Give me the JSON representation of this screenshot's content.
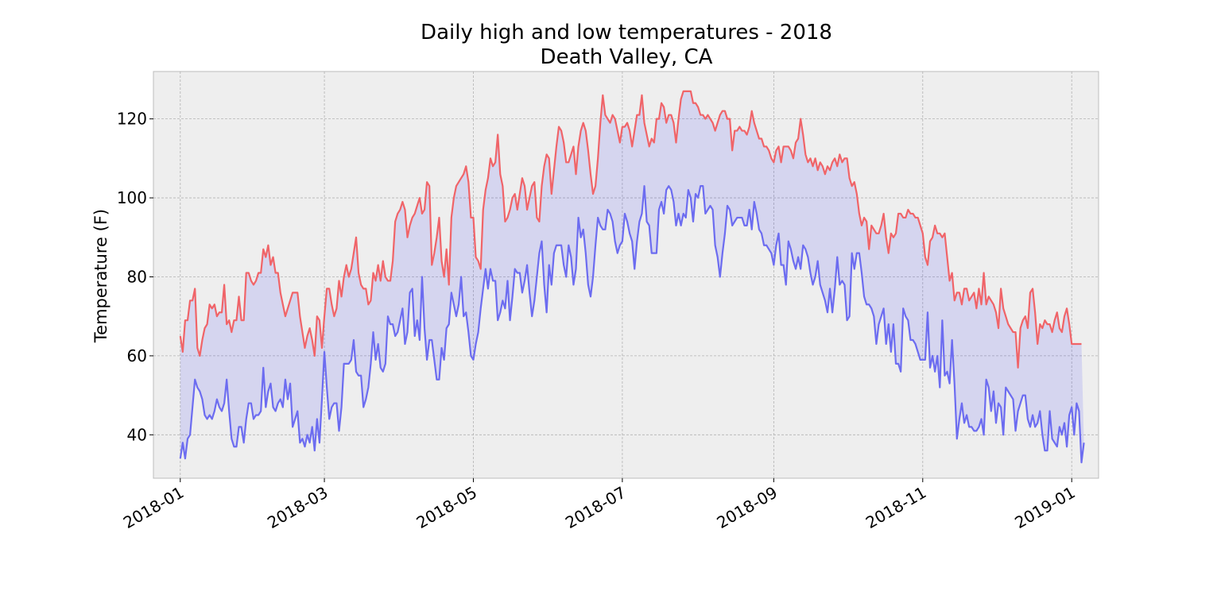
{
  "chart_data": {
    "type": "line",
    "title": [
      "Daily high and low temperatures - 2018",
      "Death Valley, CA"
    ],
    "xlabel": "",
    "ylabel": "Temperature (F)",
    "x_axis": {
      "kind": "date",
      "range": [
        "2017-12-21",
        "2019-01-12"
      ],
      "ticks": [
        "2018-01",
        "2018-03",
        "2018-05",
        "2018-07",
        "2018-09",
        "2018-11",
        "2019-01"
      ],
      "tick_dates": [
        "2018-01-01",
        "2018-03-01",
        "2018-05-01",
        "2018-07-01",
        "2018-09-01",
        "2018-11-01",
        "2019-01-01"
      ]
    },
    "y_axis": {
      "range": [
        29,
        132
      ],
      "ticks": [
        40,
        60,
        80,
        100,
        120
      ]
    },
    "grid": true,
    "fill_between": {
      "color": "#0000ff",
      "alpha": 0.1
    },
    "start_date": "2018-01-01",
    "series": [
      {
        "color": "#f06468",
        "values": [
          65,
          61,
          69,
          69,
          74,
          74,
          77,
          62,
          60,
          64,
          67,
          68,
          73,
          72,
          73,
          70,
          71,
          71,
          78,
          68,
          69,
          66,
          69,
          69,
          75,
          69,
          69,
          81,
          81,
          79,
          78,
          79,
          81,
          81,
          87,
          85,
          88,
          83,
          85,
          81,
          81,
          76,
          73,
          70,
          72,
          74,
          76,
          76,
          76,
          70,
          66,
          62,
          65,
          67,
          64,
          60,
          70,
          69,
          62,
          70,
          77,
          77,
          73,
          70,
          72,
          79,
          75,
          80,
          83,
          80,
          82,
          86,
          90,
          81,
          78,
          77,
          77,
          73,
          74,
          81,
          79,
          83,
          79,
          84,
          80,
          79,
          79,
          84,
          94,
          96,
          97,
          99,
          97,
          90,
          93,
          95,
          96,
          98,
          100,
          96,
          97,
          104,
          103,
          83,
          86,
          90,
          95,
          84,
          80,
          87,
          78,
          95,
          100,
          103,
          104,
          105,
          106,
          108,
          104,
          95,
          95,
          85,
          84,
          82,
          97,
          102,
          105,
          110,
          108,
          109,
          116,
          106,
          103,
          94,
          95,
          97,
          100,
          101,
          97,
          101,
          105,
          103,
          97,
          100,
          103,
          104,
          95,
          94,
          103,
          108,
          111,
          110,
          101,
          107,
          113,
          118,
          117,
          114,
          109,
          109,
          111,
          113,
          106,
          113,
          117,
          119,
          117,
          112,
          106,
          101,
          103,
          110,
          119,
          126,
          121,
          120,
          119,
          121,
          120,
          117,
          114,
          118,
          118,
          119,
          117,
          113,
          117,
          121,
          121,
          126,
          119,
          116,
          113,
          115,
          114,
          120,
          120,
          124,
          123,
          119,
          121,
          121,
          119,
          114,
          120,
          125,
          127,
          127,
          127,
          127,
          124,
          124,
          123,
          121,
          121,
          120,
          121,
          120,
          119,
          117,
          119,
          121,
          122,
          122,
          120,
          120,
          112,
          117,
          117,
          118,
          117,
          117,
          116,
          118,
          122,
          119,
          117,
          115,
          115,
          113,
          113,
          112,
          110,
          109,
          112,
          113,
          109,
          113,
          113,
          113,
          112,
          110,
          114,
          115,
          120,
          116,
          111,
          109,
          110,
          108,
          110,
          107,
          109,
          108,
          106,
          108,
          107,
          109,
          110,
          108,
          111,
          109,
          110,
          110,
          105,
          103,
          104,
          101,
          96,
          93,
          95,
          94,
          87,
          93,
          92,
          91,
          91,
          93,
          96,
          90,
          86,
          91,
          90,
          91,
          96,
          96,
          95,
          95,
          97,
          96,
          96,
          95,
          95,
          93,
          91,
          85,
          83,
          89,
          90,
          93,
          91,
          91,
          90,
          91,
          85,
          79,
          81,
          74,
          76,
          76,
          73,
          77,
          77,
          74,
          75,
          76,
          72,
          77,
          73,
          81,
          73,
          75,
          74,
          73,
          71,
          67,
          77,
          72,
          70,
          68,
          67,
          66,
          66,
          57,
          67,
          69,
          70,
          67,
          76,
          77,
          71,
          63,
          68,
          67,
          69,
          68,
          68,
          66,
          69,
          71,
          67,
          66,
          70,
          72,
          68,
          63,
          63,
          63,
          63,
          63
        ]
      },
      {
        "color": "#6c6cf0",
        "values": [
          34,
          38,
          34,
          39,
          40,
          47,
          54,
          52,
          51,
          49,
          45,
          44,
          45,
          44,
          46,
          49,
          47,
          46,
          48,
          54,
          46,
          39,
          37,
          37,
          42,
          42,
          38,
          44,
          48,
          48,
          44,
          45,
          45,
          46,
          57,
          47,
          51,
          53,
          47,
          46,
          48,
          49,
          47,
          54,
          49,
          53,
          42,
          44,
          46,
          38,
          39,
          37,
          40,
          38,
          42,
          36,
          44,
          38,
          49,
          61,
          52,
          44,
          47,
          48,
          48,
          41,
          47,
          58,
          58,
          58,
          59,
          64,
          56,
          55,
          55,
          47,
          49,
          52,
          58,
          66,
          59,
          63,
          57,
          56,
          58,
          70,
          68,
          68,
          65,
          66,
          69,
          72,
          63,
          66,
          76,
          77,
          65,
          69,
          64,
          80,
          67,
          59,
          64,
          64,
          59,
          54,
          54,
          62,
          59,
          67,
          68,
          76,
          73,
          70,
          73,
          80,
          70,
          71,
          66,
          60,
          59,
          63,
          66,
          72,
          77,
          82,
          77,
          82,
          79,
          79,
          69,
          71,
          74,
          72,
          79,
          69,
          75,
          82,
          81,
          81,
          76,
          79,
          83,
          76,
          70,
          74,
          80,
          86,
          89,
          78,
          71,
          83,
          78,
          86,
          88,
          88,
          88,
          83,
          80,
          88,
          85,
          78,
          82,
          95,
          90,
          92,
          86,
          78,
          75,
          80,
          88,
          95,
          93,
          92,
          92,
          97,
          96,
          94,
          89,
          86,
          88,
          89,
          96,
          94,
          91,
          89,
          82,
          89,
          94,
          96,
          103,
          94,
          93,
          86,
          86,
          86,
          97,
          99,
          96,
          102,
          103,
          102,
          99,
          93,
          96,
          93,
          96,
          95,
          102,
          100,
          94,
          101,
          100,
          103,
          103,
          96,
          97,
          98,
          97,
          88,
          85,
          80,
          86,
          91,
          98,
          97,
          93,
          94,
          95,
          95,
          95,
          93,
          93,
          97,
          92,
          99,
          96,
          92,
          91,
          88,
          88,
          87,
          86,
          83,
          88,
          91,
          83,
          83,
          78,
          89,
          87,
          84,
          82,
          85,
          82,
          88,
          87,
          85,
          81,
          78,
          80,
          84,
          78,
          76,
          74,
          71,
          77,
          71,
          77,
          85,
          78,
          79,
          78,
          69,
          70,
          86,
          82,
          86,
          86,
          81,
          75,
          73,
          73,
          72,
          70,
          63,
          68,
          70,
          72,
          63,
          68,
          61,
          68,
          58,
          58,
          56,
          72,
          70,
          69,
          64,
          64,
          63,
          61,
          59,
          59,
          59,
          71,
          57,
          60,
          56,
          60,
          52,
          69,
          55,
          56,
          53,
          64,
          53,
          39,
          44,
          48,
          43,
          45,
          42,
          42,
          41,
          41,
          42,
          44,
          40,
          54,
          52,
          46,
          51,
          43,
          48,
          47,
          40,
          52,
          51,
          50,
          49,
          41,
          46,
          48,
          50,
          50,
          44,
          42,
          45,
          42,
          43,
          46,
          40,
          36,
          36,
          46,
          39,
          38,
          37,
          42,
          40,
          43,
          37,
          45,
          47,
          40,
          48,
          46,
          33,
          38
        ]
      }
    ]
  }
}
